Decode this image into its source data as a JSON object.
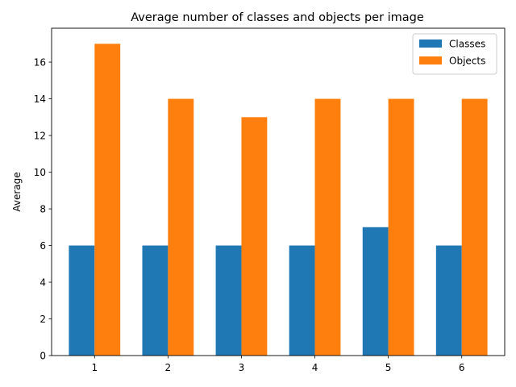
{
  "chart_data": {
    "type": "bar",
    "title": "Average number of classes and objects per image",
    "xlabel": "",
    "ylabel": "Average",
    "categories": [
      "1",
      "2",
      "3",
      "4",
      "5",
      "6"
    ],
    "series": [
      {
        "name": "Classes",
        "color": "#1f77b4",
        "values": [
          6,
          6,
          6,
          6,
          7,
          6
        ]
      },
      {
        "name": "Objects",
        "color": "#ff7f0e",
        "values": [
          17,
          14,
          13,
          14,
          14,
          14
        ]
      }
    ],
    "ylim": [
      0,
      17.85
    ],
    "yticks": [
      0,
      2,
      4,
      6,
      8,
      10,
      12,
      14,
      16
    ],
    "grid": false,
    "legend": "top-right"
  }
}
